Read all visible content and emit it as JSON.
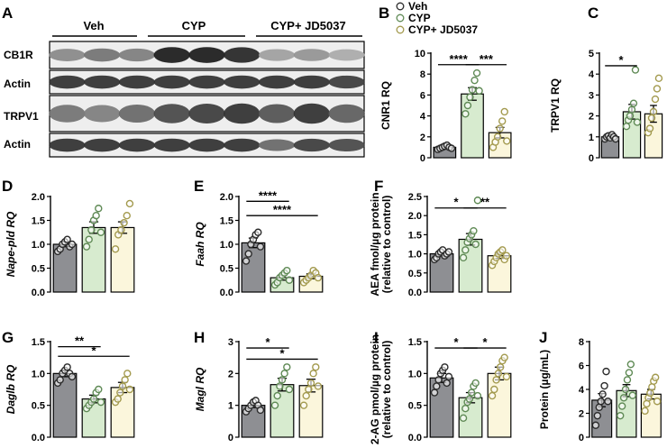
{
  "colors": {
    "veh": "#8e8f93",
    "cyp": "#d7ebcf",
    "cyp_jd": "#fbf6dc",
    "veh_dot": "#2b2b2b",
    "cyp_dot": "#5f8a55",
    "cyp_jd_dot": "#a39a4e"
  },
  "panel_a": {
    "letter": "A",
    "groups": [
      "Veh",
      "CYP",
      "CYP+ JD5037"
    ],
    "rows": [
      "CB1R",
      "Actin",
      "TRPV1",
      "Actin"
    ]
  },
  "legend": {
    "entries": [
      {
        "label": "Veh",
        "color_key": "veh_dot"
      },
      {
        "label": "CYP",
        "color_key": "cyp_dot"
      },
      {
        "label": "CYP+ JD5037",
        "color_key": "cyp_jd_dot"
      }
    ]
  },
  "chart_data": [
    {
      "panel": "B",
      "type": "bar",
      "ylabel": "CNR1 RQ",
      "ylabel_italic": false,
      "ylim": [
        0,
        10
      ],
      "ticks": [
        0,
        2,
        4,
        6,
        8,
        10
      ],
      "tick_decimals": 0,
      "series": [
        {
          "group": "Veh",
          "mean": 1.0,
          "sem": 0.1,
          "points": [
            0.8,
            0.9,
            1.0,
            1.1,
            1.2,
            1.0,
            0.9
          ]
        },
        {
          "group": "CYP",
          "mean": 6.1,
          "sem": 0.6,
          "points": [
            4.2,
            5.0,
            5.8,
            6.5,
            7.4,
            8.1,
            6.4
          ]
        },
        {
          "group": "CYP+ JD5037",
          "mean": 2.4,
          "sem": 0.5,
          "points": [
            1.0,
            1.5,
            2.0,
            2.8,
            3.5,
            4.4,
            1.6
          ]
        }
      ],
      "sig": [
        {
          "from": 0,
          "to": 1,
          "label": "****",
          "y": 8.9
        },
        {
          "from": 1,
          "to": 2,
          "label": "***",
          "y": 8.9
        }
      ]
    },
    {
      "panel": "C",
      "type": "bar",
      "ylabel": "TRPV1 RQ",
      "ylabel_italic": false,
      "ylim": [
        0,
        5
      ],
      "ticks": [
        0,
        1,
        2,
        3,
        4,
        5
      ],
      "tick_decimals": 0,
      "series": [
        {
          "group": "Veh",
          "mean": 1.0,
          "sem": 0.05,
          "points": [
            0.9,
            1.0,
            1.05,
            0.95,
            1.1,
            1.0,
            0.9
          ]
        },
        {
          "group": "CYP",
          "mean": 2.2,
          "sem": 0.35,
          "points": [
            1.5,
            1.8,
            2.0,
            2.3,
            2.6,
            4.2,
            1.7
          ]
        },
        {
          "group": "CYP+ JD5037",
          "mean": 2.1,
          "sem": 0.4,
          "points": [
            1.2,
            1.4,
            1.9,
            2.2,
            2.8,
            3.3,
            3.8
          ]
        }
      ],
      "sig": [
        {
          "from": 0,
          "to": 1,
          "label": "*",
          "y": 4.4
        }
      ]
    },
    {
      "panel": "D",
      "type": "bar",
      "ylabel": "Nape-pld RQ",
      "ylabel_italic": true,
      "ylim": [
        0,
        2.0
      ],
      "ticks": [
        0,
        0.5,
        1.0,
        1.5,
        2.0
      ],
      "tick_decimals": 1,
      "series": [
        {
          "group": "Veh",
          "mean": 1.0,
          "sem": 0.05,
          "points": [
            0.85,
            0.9,
            1.0,
            1.05,
            1.1,
            0.95,
            1.0
          ]
        },
        {
          "group": "CYP",
          "mean": 1.35,
          "sem": 0.12,
          "points": [
            0.95,
            1.1,
            1.3,
            1.5,
            1.6,
            1.75,
            1.25
          ]
        },
        {
          "group": "CYP+ JD5037",
          "mean": 1.35,
          "sem": 0.12,
          "points": [
            0.9,
            1.2,
            1.3,
            1.45,
            1.6,
            1.85
          ]
        }
      ],
      "sig": []
    },
    {
      "panel": "E",
      "type": "bar",
      "ylabel": "Faah RQ",
      "ylabel_italic": true,
      "ylim": [
        0,
        2.0
      ],
      "ticks": [
        0,
        0.5,
        1.0,
        1.5,
        2.0
      ],
      "tick_decimals": 1,
      "series": [
        {
          "group": "Veh",
          "mean": 1.03,
          "sem": 0.1,
          "points": [
            0.65,
            0.8,
            1.0,
            1.1,
            1.2,
            1.25,
            0.95
          ]
        },
        {
          "group": "CYP",
          "mean": 0.3,
          "sem": 0.05,
          "points": [
            0.15,
            0.2,
            0.3,
            0.35,
            0.4,
            0.45,
            0.25
          ]
        },
        {
          "group": "CYP+ JD5037",
          "mean": 0.33,
          "sem": 0.05,
          "points": [
            0.2,
            0.25,
            0.3,
            0.35,
            0.45,
            0.4,
            0.3
          ]
        }
      ],
      "sig": [
        {
          "from": 0,
          "to": 1,
          "label": "****",
          "y": 1.9
        },
        {
          "from": 0,
          "to": 2,
          "label": "****",
          "y": 1.6
        }
      ]
    },
    {
      "panel": "F",
      "type": "bar",
      "ylabel": "AEA fmol/µg protein",
      "ylabel2": "(relative to control)",
      "ylabel_italic": false,
      "ylim": [
        0,
        2.5
      ],
      "ticks": [
        0,
        0.5,
        1.0,
        1.5,
        2.0,
        2.5
      ],
      "tick_decimals": 1,
      "series": [
        {
          "group": "Veh",
          "mean": 1.0,
          "sem": 0.05,
          "points": [
            0.85,
            0.9,
            1.0,
            1.05,
            1.1,
            0.95,
            1.0,
            1.05
          ]
        },
        {
          "group": "CYP",
          "mean": 1.38,
          "sem": 0.15,
          "points": [
            0.9,
            1.1,
            1.3,
            1.4,
            1.5,
            1.6,
            1.25,
            2.4
          ]
        },
        {
          "group": "CYP+ JD5037",
          "mean": 0.95,
          "sem": 0.07,
          "points": [
            0.7,
            0.8,
            0.9,
            1.0,
            1.05,
            1.1,
            0.85,
            0.95
          ]
        }
      ],
      "sig": [
        {
          "from": 0,
          "to": 1,
          "label": "*",
          "y": 2.2
        },
        {
          "from": 1,
          "to": 2,
          "label": "**",
          "y": 2.2
        }
      ]
    },
    {
      "panel": "G",
      "type": "bar",
      "ylabel": "Daglb RQ",
      "ylabel_italic": true,
      "ylim": [
        0,
        1.5
      ],
      "ticks": [
        0,
        0.5,
        1.0,
        1.5
      ],
      "tick_decimals": 1,
      "series": [
        {
          "group": "Veh",
          "mean": 1.0,
          "sem": 0.05,
          "points": [
            0.85,
            0.9,
            1.0,
            1.05,
            1.1,
            1.0,
            0.95
          ]
        },
        {
          "group": "CYP",
          "mean": 0.6,
          "sem": 0.06,
          "points": [
            0.45,
            0.5,
            0.55,
            0.6,
            0.7,
            0.75,
            0.55
          ]
        },
        {
          "group": "CYP+ JD5037",
          "mean": 0.78,
          "sem": 0.08,
          "points": [
            0.55,
            0.6,
            0.7,
            0.8,
            0.9,
            1.0,
            0.75
          ]
        }
      ],
      "sig": [
        {
          "from": 0,
          "to": 1,
          "label": "**",
          "y": 1.42
        },
        {
          "from": 0,
          "to": 2,
          "label": "*",
          "y": 1.27
        }
      ]
    },
    {
      "panel": "H",
      "type": "bar",
      "ylabel": "Magl RQ",
      "ylabel_italic": true,
      "ylim": [
        0,
        3
      ],
      "ticks": [
        0,
        1,
        2,
        3
      ],
      "tick_decimals": 0,
      "series": [
        {
          "group": "Veh",
          "mean": 1.0,
          "sem": 0.07,
          "points": [
            0.8,
            0.9,
            1.0,
            1.1,
            1.15,
            1.0,
            0.85
          ]
        },
        {
          "group": "CYP",
          "mean": 1.65,
          "sem": 0.2,
          "points": [
            1.0,
            1.3,
            1.6,
            1.8,
            2.0,
            2.2,
            1.5
          ]
        },
        {
          "group": "CYP+ JD5037",
          "mean": 1.62,
          "sem": 0.2,
          "points": [
            1.0,
            1.3,
            1.5,
            1.7,
            2.0,
            2.2,
            1.6
          ]
        }
      ],
      "sig": [
        {
          "from": 0,
          "to": 1,
          "label": "*",
          "y": 2.8
        },
        {
          "from": 0,
          "to": 2,
          "label": "*",
          "y": 2.45
        }
      ]
    },
    {
      "panel": "I",
      "type": "bar",
      "ylabel": "2-AG pmol/µg protein",
      "ylabel2": "(relative to control)",
      "ylabel_italic": false,
      "ylim": [
        0,
        1.5
      ],
      "ticks": [
        0,
        0.5,
        1.0,
        1.5
      ],
      "tick_decimals": 1,
      "series": [
        {
          "group": "Veh",
          "mean": 0.93,
          "sem": 0.07,
          "points": [
            0.7,
            0.8,
            0.9,
            1.0,
            1.05,
            1.1,
            0.85,
            0.95
          ]
        },
        {
          "group": "CYP",
          "mean": 0.62,
          "sem": 0.08,
          "points": [
            0.3,
            0.45,
            0.55,
            0.6,
            0.7,
            0.8,
            0.85,
            0.65
          ]
        },
        {
          "group": "CYP+ JD5037",
          "mean": 1.0,
          "sem": 0.1,
          "points": [
            0.65,
            0.75,
            0.9,
            1.0,
            1.1,
            1.2,
            1.25,
            0.95
          ]
        }
      ],
      "sig": [
        {
          "from": 0,
          "to": 1,
          "label": "*",
          "y": 1.4
        },
        {
          "from": 1,
          "to": 2,
          "label": "*",
          "y": 1.4
        }
      ]
    },
    {
      "panel": "J",
      "type": "bar",
      "ylabel": "Protein (µg/mL)",
      "ylabel_italic": false,
      "ylim": [
        0,
        8
      ],
      "ticks": [
        0,
        2,
        4,
        6,
        8
      ],
      "tick_decimals": 0,
      "series": [
        {
          "group": "Veh",
          "mean": 3.1,
          "sem": 0.55,
          "points": [
            1.0,
            1.8,
            2.5,
            3.0,
            3.6,
            4.3,
            5.5,
            3.0
          ]
        },
        {
          "group": "CYP",
          "mean": 3.9,
          "sem": 0.5,
          "points": [
            1.8,
            2.6,
            3.3,
            4.0,
            4.8,
            5.4,
            6.1,
            3.5
          ]
        },
        {
          "group": "CYP+ JD5037",
          "mean": 3.6,
          "sem": 0.4,
          "points": [
            2.2,
            2.8,
            3.3,
            3.7,
            4.2,
            4.7,
            5.0,
            3.0
          ]
        }
      ],
      "sig": []
    }
  ]
}
